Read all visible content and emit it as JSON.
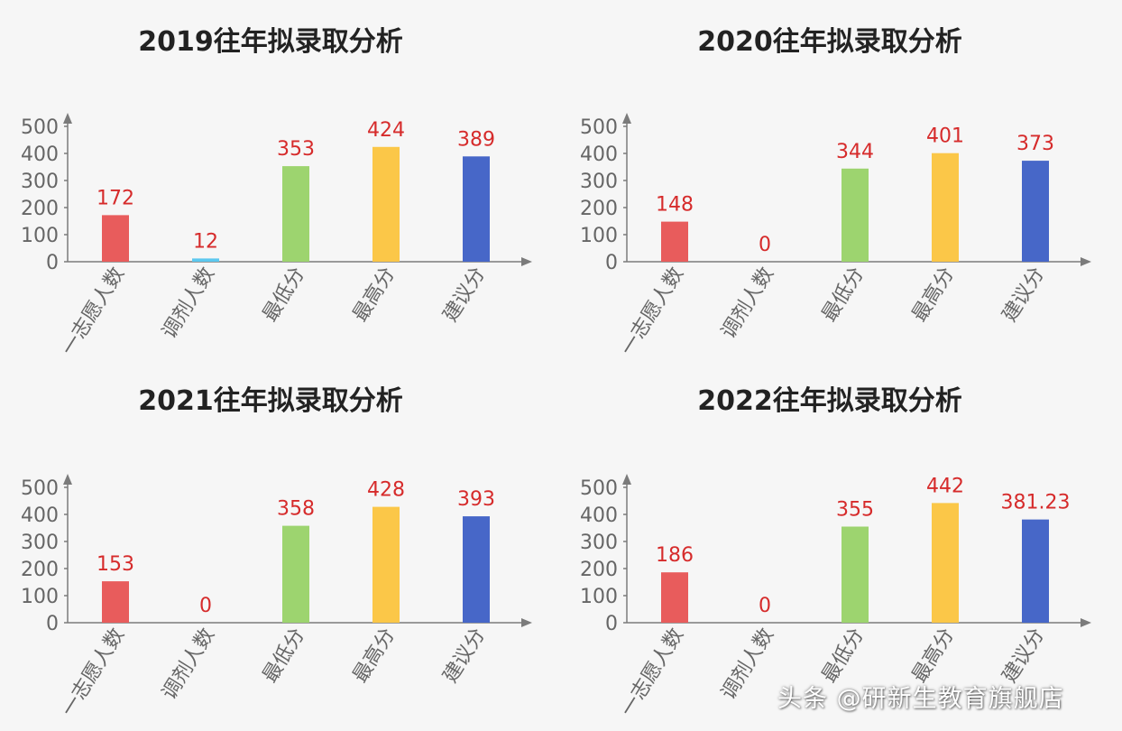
{
  "chart_data": [
    {
      "type": "bar",
      "title": "2019往年拟录取分析",
      "categories": [
        "一志愿人数",
        "调剂人数",
        "最低分",
        "最高分",
        "建议分"
      ],
      "values": [
        172,
        12,
        353,
        424,
        389
      ],
      "value_labels": [
        "172",
        "12",
        "353",
        "424",
        "389"
      ],
      "bar_colors": [
        "#e85c5c",
        "#5cc8ef",
        "#9dd46f",
        "#fbc748",
        "#4767c8"
      ],
      "yticks": [
        "0",
        "100",
        "200",
        "300",
        "400",
        "500"
      ],
      "ylim": [
        0,
        500
      ],
      "grid": false,
      "legend": "none"
    },
    {
      "type": "bar",
      "title": "2020往年拟录取分析",
      "categories": [
        "一志愿人数",
        "调剂人数",
        "最低分",
        "最高分",
        "建议分"
      ],
      "values": [
        148,
        0,
        344,
        401,
        373
      ],
      "value_labels": [
        "148",
        "0",
        "344",
        "401",
        "373"
      ],
      "bar_colors": [
        "#e85c5c",
        "#5cc8ef",
        "#9dd46f",
        "#fbc748",
        "#4767c8"
      ],
      "yticks": [
        "0",
        "100",
        "200",
        "300",
        "400",
        "500"
      ],
      "ylim": [
        0,
        500
      ],
      "grid": false,
      "legend": "none"
    },
    {
      "type": "bar",
      "title": "2021往年拟录取分析",
      "categories": [
        "一志愿人数",
        "调剂人数",
        "最低分",
        "最高分",
        "建议分"
      ],
      "values": [
        153,
        0,
        358,
        428,
        393
      ],
      "value_labels": [
        "153",
        "0",
        "358",
        "428",
        "393"
      ],
      "bar_colors": [
        "#e85c5c",
        "#5cc8ef",
        "#9dd46f",
        "#fbc748",
        "#4767c8"
      ],
      "yticks": [
        "0",
        "100",
        "200",
        "300",
        "400",
        "500"
      ],
      "ylim": [
        0,
        500
      ],
      "grid": false,
      "legend": "none"
    },
    {
      "type": "bar",
      "title": "2022往年拟录取分析",
      "categories": [
        "一志愿人数",
        "调剂人数",
        "最低分",
        "最高分",
        "建议分"
      ],
      "values": [
        186,
        0,
        355,
        442,
        381.23
      ],
      "value_labels": [
        "186",
        "0",
        "355",
        "442",
        "381.23"
      ],
      "bar_colors": [
        "#e85c5c",
        "#5cc8ef",
        "#9dd46f",
        "#fbc748",
        "#4767c8"
      ],
      "yticks": [
        "0",
        "100",
        "200",
        "300",
        "400",
        "500"
      ],
      "ylim": [
        0,
        500
      ],
      "grid": false,
      "legend": "none"
    }
  ],
  "colors": {
    "axis": "#7b7b7b",
    "tick_text": "#666666",
    "value_label": "#d62b2b",
    "title": "#222222"
  },
  "watermark": "头条 @研新生教育旗舰店"
}
